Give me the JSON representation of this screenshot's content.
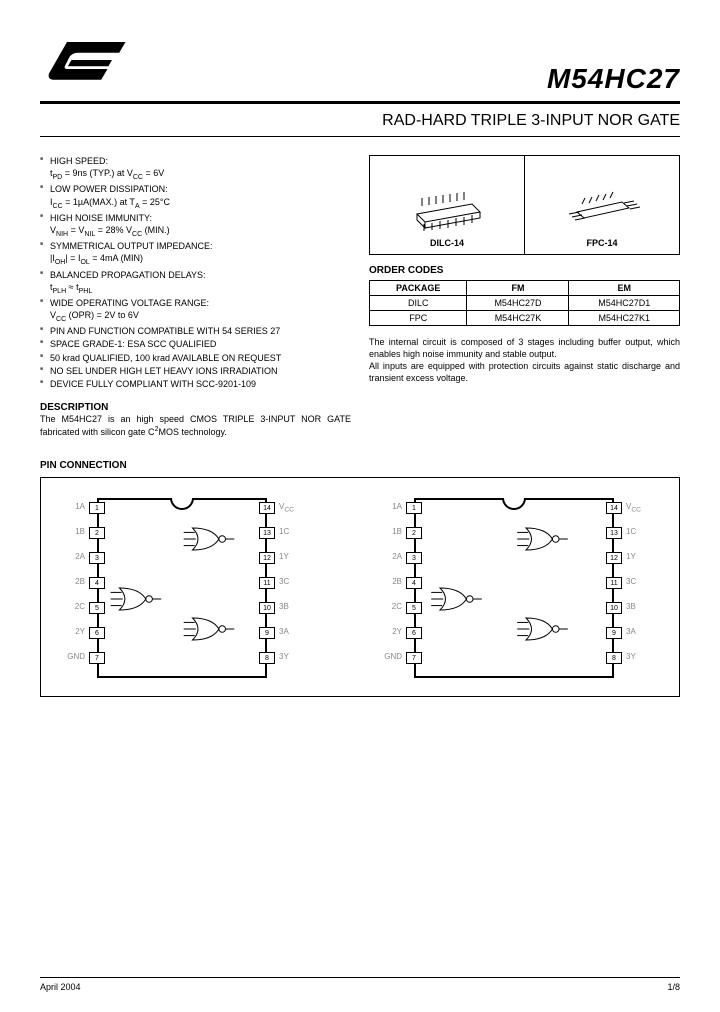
{
  "header": {
    "part_number": "M54HC27",
    "title": "RAD-HARD TRIPLE 3-INPUT NOR GATE"
  },
  "features": [
    "HIGH SPEED:\nt_PD = 9ns (TYP.) at V_CC = 6V",
    "LOW POWER DISSIPATION:\nI_CC = 1µA(MAX.) at T_A = 25°C",
    "HIGH NOISE IMMUNITY:\nV_NIH = V_NIL = 28% V_CC (MIN.)",
    "SYMMETRICAL OUTPUT IMPEDANCE:\n|I_OH| = I_OL = 4mA (MIN)",
    "BALANCED PROPAGATION DELAYS:\nt_PLH ≈ t_PHL",
    "WIDE OPERATING VOLTAGE RANGE:\nV_CC (OPR) = 2V to 6V",
    "PIN AND FUNCTION COMPATIBLE WITH 54 SERIES 27",
    "SPACE GRADE-1: ESA SCC QUALIFIED",
    "50 krad QUALIFIED, 100 krad AVAILABLE ON REQUEST",
    "NO SEL UNDER HIGH LET HEAVY IONS IRRADIATION",
    "DEVICE FULLY COMPLIANT WITH SCC-9201-109"
  ],
  "description": {
    "heading": "DESCRIPTION",
    "body": "The M54HC27 is an high speed CMOS TRIPLE 3-INPUT NOR GATE fabricated with silicon gate C²MOS technology."
  },
  "packages": {
    "items": [
      {
        "label": "DILC-14"
      },
      {
        "label": "FPC-14"
      }
    ]
  },
  "order_codes": {
    "heading": "ORDER CODES",
    "columns": [
      "PACKAGE",
      "FM",
      "EM"
    ],
    "rows": [
      [
        "DILC",
        "M54HC27D",
        "M54HC27D1"
      ],
      [
        "FPC",
        "M54HC27K",
        "M54HC27K1"
      ]
    ]
  },
  "internal_text": "The internal circuit is composed of 3 stages including buffer output, which enables high noise immunity and stable output.\nAll inputs are equipped with protection circuits against static discharge and transient excess voltage.",
  "pin_connection": {
    "heading": "PIN CONNECTION",
    "left_pins": [
      "1A",
      "1B",
      "2A",
      "2B",
      "2C",
      "2Y",
      "GND"
    ],
    "right_pins": [
      "V_CC",
      "1C",
      "1Y",
      "3C",
      "3B",
      "3A",
      "3Y"
    ],
    "left_nums": [
      1,
      2,
      3,
      4,
      5,
      6,
      7
    ],
    "right_nums": [
      14,
      13,
      12,
      11,
      10,
      9,
      8
    ]
  },
  "footer": {
    "date": "April 2004",
    "page": "1/8"
  },
  "style": {
    "text_color": "#000000",
    "faint_color": "#888888",
    "border_color": "#000000",
    "bg": "#ffffff",
    "fontsize_body": 9,
    "fontsize_title": 16,
    "fontsize_part": 28
  }
}
